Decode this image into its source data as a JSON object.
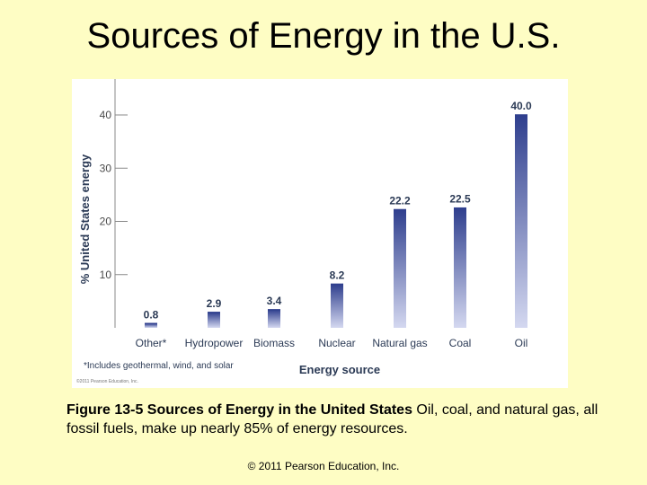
{
  "slide": {
    "title": "Sources of Energy in the U.S.",
    "caption_bold": "Figure 13-5  Sources of Energy in the United States",
    "caption_text": "  Oil, coal, and natural gas, all fossil fuels, make up nearly 85% of energy resources.",
    "copyright": "© 2011 Pearson Education, Inc."
  },
  "chart_data": {
    "type": "bar",
    "categories": [
      "Other*",
      "Hydropower",
      "Biomass",
      "Nuclear",
      "Natural gas",
      "Coal",
      "Oil"
    ],
    "values": [
      0.8,
      2.9,
      3.4,
      8.2,
      22.2,
      22.5,
      40.0
    ],
    "value_labels": [
      "0.8",
      "2.9",
      "3.4",
      "8.2",
      "22.2",
      "22.5",
      "40.0"
    ],
    "yticks": [
      10,
      20,
      30,
      40
    ],
    "ylim": [
      0,
      40
    ],
    "xlabel": "Energy source",
    "ylabel": "% United States energy",
    "footnote": "*Includes geothermal, wind, and solar",
    "fineprint": "©2011 Pearson Education, Inc.",
    "grid": false,
    "bar_color_top": "#2f3f8e",
    "bar_color_bottom": "#d4d8f0",
    "text_color": "#2b3a55"
  }
}
